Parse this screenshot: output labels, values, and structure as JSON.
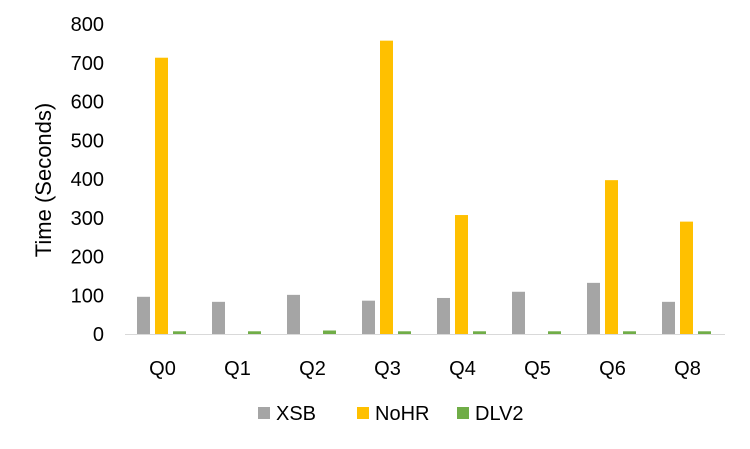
{
  "chart_data": {
    "type": "bar",
    "title": "",
    "xlabel": "",
    "ylabel": "Time (Seconds)",
    "ylim": [
      0,
      800
    ],
    "yticks": [
      0,
      100,
      200,
      300,
      400,
      500,
      600,
      700,
      800
    ],
    "grid": false,
    "legend": "bottom",
    "categories": [
      "Q0",
      "Q1",
      "Q2",
      "Q3",
      "Q4",
      "Q5",
      "Q6",
      "Q8"
    ],
    "series": [
      {
        "name": "XSB",
        "color": "#a5a5a5",
        "values": [
          96,
          83,
          101,
          86,
          93,
          109,
          132,
          83
        ]
      },
      {
        "name": "NoHR",
        "color": "#ffc000",
        "values": [
          713,
          0,
          0,
          757,
          307,
          0,
          397,
          290
        ]
      },
      {
        "name": "DLV2",
        "color": "#70ad47",
        "values": [
          7,
          7,
          9,
          7,
          7,
          7,
          7,
          7
        ]
      }
    ]
  }
}
